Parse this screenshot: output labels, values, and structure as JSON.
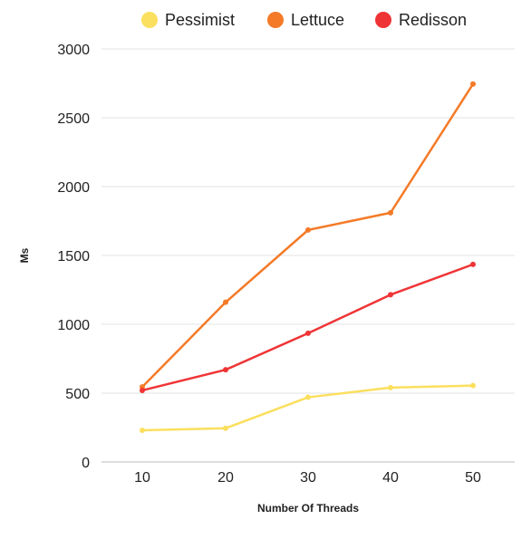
{
  "chart_data": {
    "type": "line",
    "title": "",
    "xlabel": "Number Of Threads",
    "ylabel": "Ms",
    "x": [
      10,
      20,
      30,
      40,
      50
    ],
    "x_tick_labels": [
      "10",
      "20",
      "30",
      "40",
      "50"
    ],
    "ylim": [
      0,
      3000
    ],
    "y_ticks": [
      0,
      500,
      1000,
      1500,
      2000,
      2500,
      3000
    ],
    "y_tick_labels": [
      "0",
      "500",
      "1000",
      "1500",
      "2000",
      "2500",
      "3000"
    ],
    "grid": "horizontal",
    "legend_position": "top",
    "series": [
      {
        "name": "Pessimist",
        "color": "#fbdf5e",
        "values": [
          230,
          245,
          470,
          540,
          555
        ]
      },
      {
        "name": "Lettuce",
        "color": "#f47a27",
        "values": [
          545,
          1160,
          1685,
          1810,
          2745
        ]
      },
      {
        "name": "Redisson",
        "color": "#ef3436",
        "values": [
          520,
          670,
          935,
          1215,
          1435
        ]
      }
    ]
  }
}
